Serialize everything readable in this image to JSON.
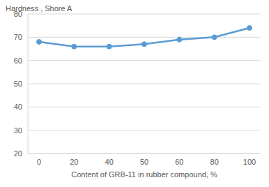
{
  "chart_data": {
    "type": "line",
    "y_label": "Hardness , Shore A",
    "x_label": "Content of GRB-11 in rubber compound, %",
    "categories": [
      "0",
      "20",
      "40",
      "50",
      "60",
      "80",
      "100"
    ],
    "values": [
      68,
      66,
      66,
      67,
      69,
      70,
      74
    ],
    "color": "#5b9bd5",
    "marker": "circle",
    "ylim": [
      20,
      80
    ],
    "yticks": [
      20,
      30,
      40,
      50,
      60,
      70,
      80
    ],
    "grid": true
  }
}
